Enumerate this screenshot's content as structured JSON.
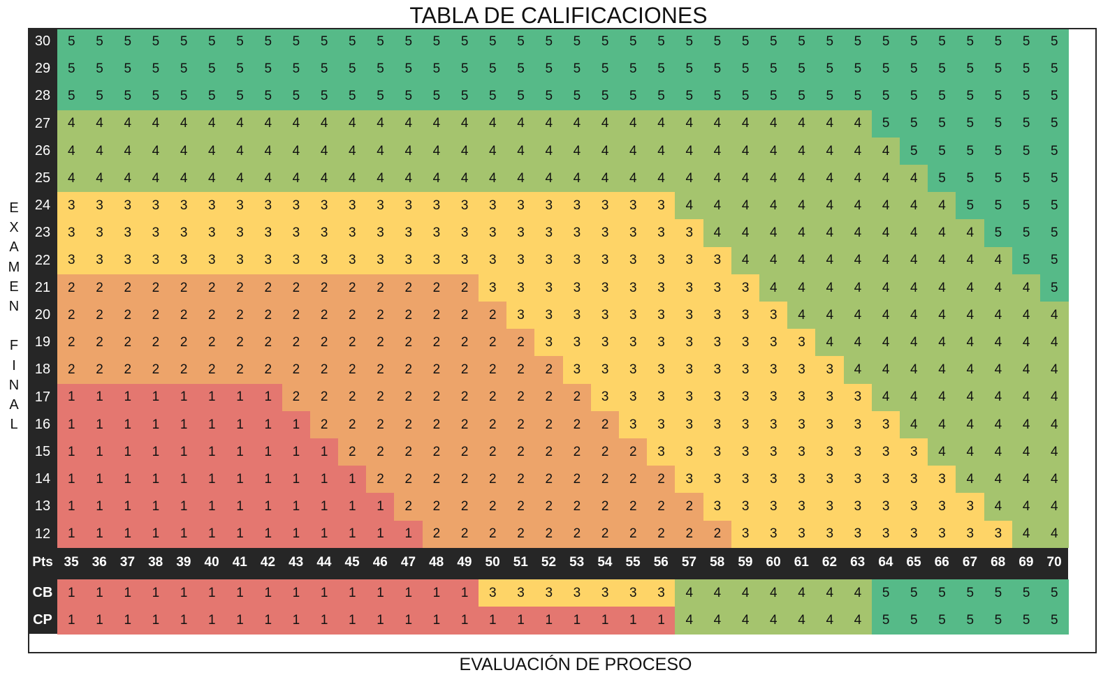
{
  "title": "TABLA DE CALIFICACIONES",
  "ylabel_letters": [
    "E",
    "X",
    "A",
    "M",
    "E",
    "N",
    "",
    "F",
    "I",
    "N",
    "A",
    "L"
  ],
  "chart_data": {
    "type": "heatmap",
    "title": "TABLA DE CALIFICACIONES",
    "xlabel": "EVALUACIÓN DE PROCESO",
    "ylabel": "EXAMEN FINAL",
    "x_axis_label": "Pts",
    "x": [
      35,
      36,
      37,
      38,
      39,
      40,
      41,
      42,
      43,
      44,
      45,
      46,
      47,
      48,
      49,
      50,
      51,
      52,
      53,
      54,
      55,
      56,
      57,
      58,
      59,
      60,
      61,
      62,
      63,
      64,
      65,
      66,
      67,
      68,
      69,
      70
    ],
    "y": [
      30,
      29,
      28,
      27,
      26,
      25,
      24,
      23,
      22,
      21,
      20,
      19,
      18,
      17,
      16,
      15,
      14,
      13,
      12
    ],
    "values": [
      [
        5,
        5,
        5,
        5,
        5,
        5,
        5,
        5,
        5,
        5,
        5,
        5,
        5,
        5,
        5,
        5,
        5,
        5,
        5,
        5,
        5,
        5,
        5,
        5,
        5,
        5,
        5,
        5,
        5,
        5,
        5,
        5,
        5,
        5,
        5,
        5
      ],
      [
        5,
        5,
        5,
        5,
        5,
        5,
        5,
        5,
        5,
        5,
        5,
        5,
        5,
        5,
        5,
        5,
        5,
        5,
        5,
        5,
        5,
        5,
        5,
        5,
        5,
        5,
        5,
        5,
        5,
        5,
        5,
        5,
        5,
        5,
        5,
        5
      ],
      [
        5,
        5,
        5,
        5,
        5,
        5,
        5,
        5,
        5,
        5,
        5,
        5,
        5,
        5,
        5,
        5,
        5,
        5,
        5,
        5,
        5,
        5,
        5,
        5,
        5,
        5,
        5,
        5,
        5,
        5,
        5,
        5,
        5,
        5,
        5,
        5
      ],
      [
        4,
        4,
        4,
        4,
        4,
        4,
        4,
        4,
        4,
        4,
        4,
        4,
        4,
        4,
        4,
        4,
        4,
        4,
        4,
        4,
        4,
        4,
        4,
        4,
        4,
        4,
        4,
        4,
        4,
        5,
        5,
        5,
        5,
        5,
        5,
        5
      ],
      [
        4,
        4,
        4,
        4,
        4,
        4,
        4,
        4,
        4,
        4,
        4,
        4,
        4,
        4,
        4,
        4,
        4,
        4,
        4,
        4,
        4,
        4,
        4,
        4,
        4,
        4,
        4,
        4,
        4,
        4,
        5,
        5,
        5,
        5,
        5,
        5
      ],
      [
        4,
        4,
        4,
        4,
        4,
        4,
        4,
        4,
        4,
        4,
        4,
        4,
        4,
        4,
        4,
        4,
        4,
        4,
        4,
        4,
        4,
        4,
        4,
        4,
        4,
        4,
        4,
        4,
        4,
        4,
        4,
        5,
        5,
        5,
        5,
        5
      ],
      [
        3,
        3,
        3,
        3,
        3,
        3,
        3,
        3,
        3,
        3,
        3,
        3,
        3,
        3,
        3,
        3,
        3,
        3,
        3,
        3,
        3,
        3,
        4,
        4,
        4,
        4,
        4,
        4,
        4,
        4,
        4,
        4,
        5,
        5,
        5,
        5
      ],
      [
        3,
        3,
        3,
        3,
        3,
        3,
        3,
        3,
        3,
        3,
        3,
        3,
        3,
        3,
        3,
        3,
        3,
        3,
        3,
        3,
        3,
        3,
        3,
        4,
        4,
        4,
        4,
        4,
        4,
        4,
        4,
        4,
        4,
        5,
        5,
        5
      ],
      [
        3,
        3,
        3,
        3,
        3,
        3,
        3,
        3,
        3,
        3,
        3,
        3,
        3,
        3,
        3,
        3,
        3,
        3,
        3,
        3,
        3,
        3,
        3,
        3,
        4,
        4,
        4,
        4,
        4,
        4,
        4,
        4,
        4,
        4,
        5,
        5
      ],
      [
        2,
        2,
        2,
        2,
        2,
        2,
        2,
        2,
        2,
        2,
        2,
        2,
        2,
        2,
        2,
        3,
        3,
        3,
        3,
        3,
        3,
        3,
        3,
        3,
        3,
        4,
        4,
        4,
        4,
        4,
        4,
        4,
        4,
        4,
        4,
        5
      ],
      [
        2,
        2,
        2,
        2,
        2,
        2,
        2,
        2,
        2,
        2,
        2,
        2,
        2,
        2,
        2,
        2,
        3,
        3,
        3,
        3,
        3,
        3,
        3,
        3,
        3,
        3,
        4,
        4,
        4,
        4,
        4,
        4,
        4,
        4,
        4,
        4
      ],
      [
        2,
        2,
        2,
        2,
        2,
        2,
        2,
        2,
        2,
        2,
        2,
        2,
        2,
        2,
        2,
        2,
        2,
        3,
        3,
        3,
        3,
        3,
        3,
        3,
        3,
        3,
        3,
        4,
        4,
        4,
        4,
        4,
        4,
        4,
        4,
        4
      ],
      [
        2,
        2,
        2,
        2,
        2,
        2,
        2,
        2,
        2,
        2,
        2,
        2,
        2,
        2,
        2,
        2,
        2,
        2,
        3,
        3,
        3,
        3,
        3,
        3,
        3,
        3,
        3,
        3,
        4,
        4,
        4,
        4,
        4,
        4,
        4,
        4
      ],
      [
        1,
        1,
        1,
        1,
        1,
        1,
        1,
        1,
        2,
        2,
        2,
        2,
        2,
        2,
        2,
        2,
        2,
        2,
        2,
        3,
        3,
        3,
        3,
        3,
        3,
        3,
        3,
        3,
        3,
        4,
        4,
        4,
        4,
        4,
        4,
        4
      ],
      [
        1,
        1,
        1,
        1,
        1,
        1,
        1,
        1,
        1,
        2,
        2,
        2,
        2,
        2,
        2,
        2,
        2,
        2,
        2,
        2,
        3,
        3,
        3,
        3,
        3,
        3,
        3,
        3,
        3,
        3,
        4,
        4,
        4,
        4,
        4,
        4
      ],
      [
        1,
        1,
        1,
        1,
        1,
        1,
        1,
        1,
        1,
        1,
        2,
        2,
        2,
        2,
        2,
        2,
        2,
        2,
        2,
        2,
        2,
        3,
        3,
        3,
        3,
        3,
        3,
        3,
        3,
        3,
        3,
        4,
        4,
        4,
        4,
        4
      ],
      [
        1,
        1,
        1,
        1,
        1,
        1,
        1,
        1,
        1,
        1,
        1,
        2,
        2,
        2,
        2,
        2,
        2,
        2,
        2,
        2,
        2,
        2,
        3,
        3,
        3,
        3,
        3,
        3,
        3,
        3,
        3,
        3,
        4,
        4,
        4,
        4
      ],
      [
        1,
        1,
        1,
        1,
        1,
        1,
        1,
        1,
        1,
        1,
        1,
        1,
        2,
        2,
        2,
        2,
        2,
        2,
        2,
        2,
        2,
        2,
        2,
        3,
        3,
        3,
        3,
        3,
        3,
        3,
        3,
        3,
        3,
        4,
        4,
        4
      ],
      [
        1,
        1,
        1,
        1,
        1,
        1,
        1,
        1,
        1,
        1,
        1,
        1,
        1,
        2,
        2,
        2,
        2,
        2,
        2,
        2,
        2,
        2,
        2,
        2,
        3,
        3,
        3,
        3,
        3,
        3,
        3,
        3,
        3,
        3,
        4,
        4
      ]
    ],
    "extra_rows": [
      {
        "label": "CB",
        "values": [
          1,
          1,
          1,
          1,
          1,
          1,
          1,
          1,
          1,
          1,
          1,
          1,
          1,
          1,
          1,
          3,
          3,
          3,
          3,
          3,
          3,
          3,
          4,
          4,
          4,
          4,
          4,
          4,
          4,
          5,
          5,
          5,
          5,
          5,
          5,
          5
        ]
      },
      {
        "label": "CP",
        "values": [
          1,
          1,
          1,
          1,
          1,
          1,
          1,
          1,
          1,
          1,
          1,
          1,
          1,
          1,
          1,
          1,
          1,
          1,
          1,
          1,
          1,
          1,
          4,
          4,
          4,
          4,
          4,
          4,
          4,
          5,
          5,
          5,
          5,
          5,
          5,
          5
        ]
      }
    ],
    "colors": {
      "1": "#e47770",
      "2": "#eda46a",
      "3": "#fed467",
      "4": "#a5c46e",
      "5": "#56ba88"
    }
  }
}
